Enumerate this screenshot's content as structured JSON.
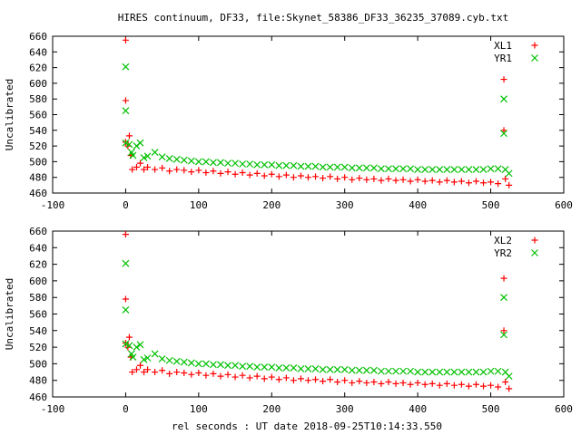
{
  "title": "HIRES continuum, DF33, file:Skynet_58386_DF33_36235_37089.cyb.txt",
  "xlabel": "rel seconds : UT date 2018-09-25T10:14:33.550",
  "colors": {
    "red": "#ff0000",
    "green": "#00c000"
  },
  "chart_data": [
    {
      "type": "scatter",
      "ylabel": "Uncalibrated",
      "xlim": [
        -100,
        600
      ],
      "ylim": [
        460,
        660
      ],
      "xticks": [
        "-100",
        "0",
        "100",
        "200",
        "300",
        "400",
        "500",
        "600"
      ],
      "yticks": [
        "460",
        "480",
        "500",
        "520",
        "540",
        "560",
        "580",
        "600",
        "620",
        "640",
        "660"
      ],
      "legend_position": "top-right",
      "series": [
        {
          "name": "XL1",
          "marker": "plus",
          "color": "#ff0000",
          "points": [
            [
              0,
              655
            ],
            [
              0,
              578
            ],
            [
              0,
              525
            ],
            [
              3,
              520
            ],
            [
              5,
              533
            ],
            [
              7,
              508
            ],
            [
              9,
              490
            ],
            [
              15,
              493
            ],
            [
              20,
              498
            ],
            [
              25,
              490
            ],
            [
              30,
              493
            ],
            [
              40,
              490
            ],
            [
              50,
              492
            ],
            [
              60,
              488
            ],
            [
              70,
              490
            ],
            [
              80,
              489
            ],
            [
              90,
              487
            ],
            [
              100,
              489
            ],
            [
              110,
              486
            ],
            [
              120,
              488
            ],
            [
              130,
              485
            ],
            [
              140,
              487
            ],
            [
              150,
              484
            ],
            [
              160,
              486
            ],
            [
              170,
              483
            ],
            [
              180,
              485
            ],
            [
              190,
              482
            ],
            [
              200,
              484
            ],
            [
              210,
              481
            ],
            [
              220,
              483
            ],
            [
              230,
              480
            ],
            [
              240,
              482
            ],
            [
              250,
              480
            ],
            [
              260,
              481
            ],
            [
              270,
              479
            ],
            [
              280,
              481
            ],
            [
              290,
              478
            ],
            [
              300,
              480
            ],
            [
              310,
              477
            ],
            [
              320,
              479
            ],
            [
              330,
              477
            ],
            [
              340,
              478
            ],
            [
              350,
              476
            ],
            [
              360,
              478
            ],
            [
              370,
              476
            ],
            [
              380,
              477
            ],
            [
              390,
              475
            ],
            [
              400,
              477
            ],
            [
              410,
              475
            ],
            [
              420,
              476
            ],
            [
              430,
              474
            ],
            [
              440,
              476
            ],
            [
              450,
              474
            ],
            [
              460,
              475
            ],
            [
              470,
              473
            ],
            [
              480,
              475
            ],
            [
              490,
              473
            ],
            [
              500,
              474
            ],
            [
              510,
              472
            ],
            [
              518,
              605
            ],
            [
              518,
              540
            ],
            [
              520,
              478
            ],
            [
              525,
              470
            ]
          ]
        },
        {
          "name": "YR1",
          "marker": "cross",
          "color": "#00c000",
          "points": [
            [
              0,
              621
            ],
            [
              0,
              565
            ],
            [
              0,
              524
            ],
            [
              5,
              522
            ],
            [
              8,
              512
            ],
            [
              10,
              508
            ],
            [
              15,
              520
            ],
            [
              20,
              524
            ],
            [
              25,
              505
            ],
            [
              30,
              507
            ],
            [
              40,
              512
            ],
            [
              50,
              506
            ],
            [
              60,
              504
            ],
            [
              70,
              503
            ],
            [
              80,
              502
            ],
            [
              90,
              501
            ],
            [
              100,
              500
            ],
            [
              110,
              500
            ],
            [
              120,
              499
            ],
            [
              130,
              499
            ],
            [
              140,
              498
            ],
            [
              150,
              498
            ],
            [
              160,
              497
            ],
            [
              170,
              497
            ],
            [
              180,
              496
            ],
            [
              190,
              496
            ],
            [
              200,
              496
            ],
            [
              210,
              495
            ],
            [
              220,
              495
            ],
            [
              230,
              495
            ],
            [
              240,
              494
            ],
            [
              250,
              494
            ],
            [
              260,
              494
            ],
            [
              270,
              493
            ],
            [
              280,
              493
            ],
            [
              290,
              493
            ],
            [
              300,
              493
            ],
            [
              310,
              492
            ],
            [
              320,
              492
            ],
            [
              330,
              492
            ],
            [
              340,
              492
            ],
            [
              350,
              491
            ],
            [
              360,
              491
            ],
            [
              370,
              491
            ],
            [
              380,
              491
            ],
            [
              390,
              491
            ],
            [
              400,
              490
            ],
            [
              410,
              490
            ],
            [
              420,
              490
            ],
            [
              430,
              490
            ],
            [
              440,
              490
            ],
            [
              450,
              490
            ],
            [
              460,
              490
            ],
            [
              470,
              490
            ],
            [
              480,
              490
            ],
            [
              490,
              490
            ],
            [
              500,
              491
            ],
            [
              510,
              491
            ],
            [
              518,
              580
            ],
            [
              518,
              536
            ],
            [
              520,
              490
            ],
            [
              525,
              485
            ]
          ]
        }
      ]
    },
    {
      "type": "scatter",
      "ylabel": "Uncalibrated",
      "xlim": [
        -100,
        600
      ],
      "ylim": [
        460,
        660
      ],
      "xticks": [
        "-100",
        "0",
        "100",
        "200",
        "300",
        "400",
        "500",
        "600"
      ],
      "yticks": [
        "460",
        "480",
        "500",
        "520",
        "540",
        "560",
        "580",
        "600",
        "620",
        "640",
        "660"
      ],
      "legend_position": "top-right",
      "series": [
        {
          "name": "XL2",
          "marker": "plus",
          "color": "#ff0000",
          "points": [
            [
              0,
              656
            ],
            [
              0,
              578
            ],
            [
              0,
              525
            ],
            [
              3,
              520
            ],
            [
              5,
              532
            ],
            [
              7,
              508
            ],
            [
              9,
              490
            ],
            [
              15,
              493
            ],
            [
              20,
              498
            ],
            [
              25,
              490
            ],
            [
              30,
              493
            ],
            [
              40,
              490
            ],
            [
              50,
              492
            ],
            [
              60,
              488
            ],
            [
              70,
              490
            ],
            [
              80,
              489
            ],
            [
              90,
              487
            ],
            [
              100,
              489
            ],
            [
              110,
              486
            ],
            [
              120,
              488
            ],
            [
              130,
              485
            ],
            [
              140,
              487
            ],
            [
              150,
              484
            ],
            [
              160,
              486
            ],
            [
              170,
              483
            ],
            [
              180,
              485
            ],
            [
              190,
              482
            ],
            [
              200,
              484
            ],
            [
              210,
              481
            ],
            [
              220,
              483
            ],
            [
              230,
              480
            ],
            [
              240,
              482
            ],
            [
              250,
              480
            ],
            [
              260,
              481
            ],
            [
              270,
              479
            ],
            [
              280,
              481
            ],
            [
              290,
              478
            ],
            [
              300,
              480
            ],
            [
              310,
              477
            ],
            [
              320,
              479
            ],
            [
              330,
              477
            ],
            [
              340,
              478
            ],
            [
              350,
              476
            ],
            [
              360,
              478
            ],
            [
              370,
              476
            ],
            [
              380,
              477
            ],
            [
              390,
              475
            ],
            [
              400,
              477
            ],
            [
              410,
              475
            ],
            [
              420,
              476
            ],
            [
              430,
              474
            ],
            [
              440,
              476
            ],
            [
              450,
              474
            ],
            [
              460,
              475
            ],
            [
              470,
              473
            ],
            [
              480,
              475
            ],
            [
              490,
              473
            ],
            [
              500,
              474
            ],
            [
              510,
              472
            ],
            [
              518,
              603
            ],
            [
              518,
              540
            ],
            [
              520,
              478
            ],
            [
              525,
              470
            ]
          ]
        },
        {
          "name": "YR2",
          "marker": "cross",
          "color": "#00c000",
          "points": [
            [
              0,
              621
            ],
            [
              0,
              565
            ],
            [
              0,
              524
            ],
            [
              5,
              522
            ],
            [
              8,
              512
            ],
            [
              10,
              508
            ],
            [
              15,
              520
            ],
            [
              20,
              523
            ],
            [
              25,
              505
            ],
            [
              30,
              507
            ],
            [
              40,
              512
            ],
            [
              50,
              506
            ],
            [
              60,
              504
            ],
            [
              70,
              503
            ],
            [
              80,
              502
            ],
            [
              90,
              501
            ],
            [
              100,
              500
            ],
            [
              110,
              500
            ],
            [
              120,
              499
            ],
            [
              130,
              499
            ],
            [
              140,
              498
            ],
            [
              150,
              498
            ],
            [
              160,
              497
            ],
            [
              170,
              497
            ],
            [
              180,
              496
            ],
            [
              190,
              496
            ],
            [
              200,
              496
            ],
            [
              210,
              495
            ],
            [
              220,
              495
            ],
            [
              230,
              495
            ],
            [
              240,
              494
            ],
            [
              250,
              494
            ],
            [
              260,
              494
            ],
            [
              270,
              493
            ],
            [
              280,
              493
            ],
            [
              290,
              493
            ],
            [
              300,
              493
            ],
            [
              310,
              492
            ],
            [
              320,
              492
            ],
            [
              330,
              492
            ],
            [
              340,
              492
            ],
            [
              350,
              491
            ],
            [
              360,
              491
            ],
            [
              370,
              491
            ],
            [
              380,
              491
            ],
            [
              390,
              491
            ],
            [
              400,
              490
            ],
            [
              410,
              490
            ],
            [
              420,
              490
            ],
            [
              430,
              490
            ],
            [
              440,
              490
            ],
            [
              450,
              490
            ],
            [
              460,
              490
            ],
            [
              470,
              490
            ],
            [
              480,
              490
            ],
            [
              490,
              490
            ],
            [
              500,
              491
            ],
            [
              510,
              491
            ],
            [
              518,
              580
            ],
            [
              518,
              535
            ],
            [
              520,
              490
            ],
            [
              525,
              485
            ]
          ]
        }
      ]
    }
  ]
}
